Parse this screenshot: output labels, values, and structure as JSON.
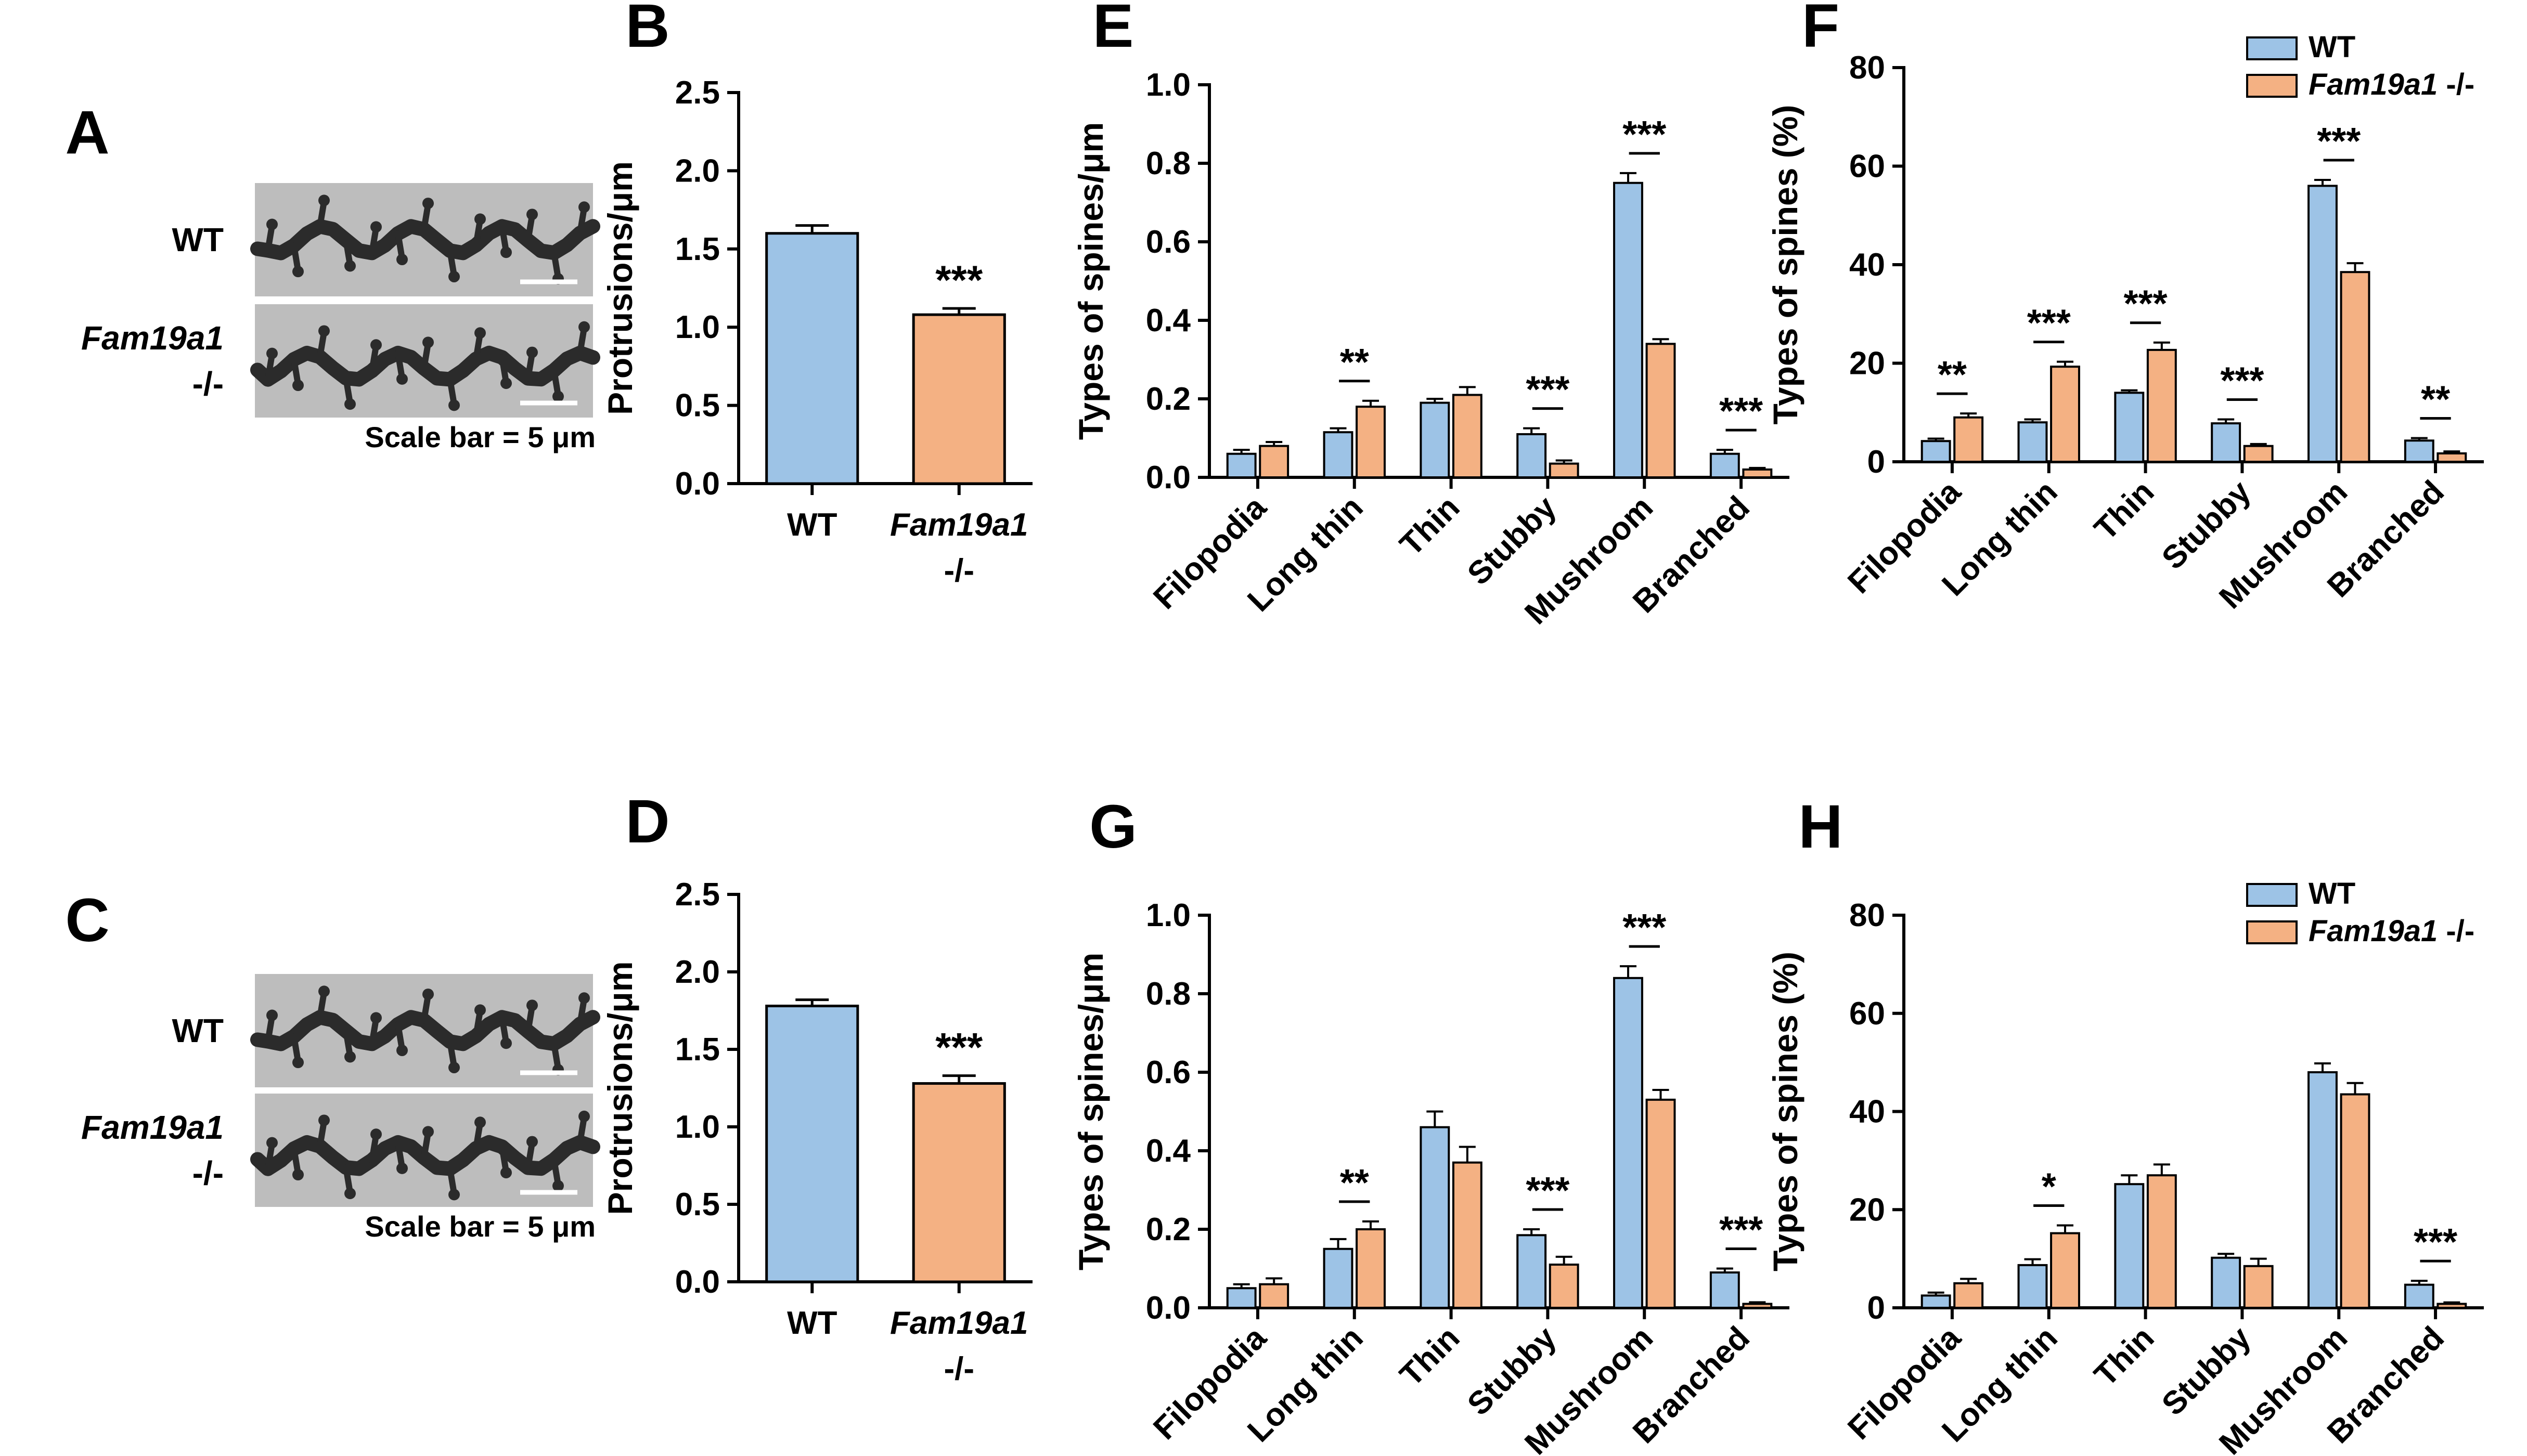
{
  "colors": {
    "wt": "#9DC3E6",
    "ko": "#F4B183",
    "axis": "#000000",
    "micrograph_bg": "#bdbdbd",
    "dendrite": "#2b2b2b"
  },
  "legend": {
    "wt": "WT",
    "ko": "Fam19a1 -/-"
  },
  "micrograph_panels": [
    {
      "label": "A",
      "row_labels": [
        [
          "WT"
        ],
        [
          "Fam19a1",
          "-/-"
        ]
      ],
      "scale_bar_text": "Scale bar = 5 μm"
    },
    {
      "label": "C",
      "row_labels": [
        [
          "WT"
        ],
        [
          "Fam19a1",
          "-/-"
        ]
      ],
      "scale_bar_text": "Scale bar = 5 μm"
    }
  ],
  "chart_data": [
    {
      "panel": "B",
      "type": "bar",
      "ylabel": "Protrusions/μm",
      "ylim": [
        0,
        2.5
      ],
      "yticks": [
        "0.0",
        "0.5",
        "1.0",
        "1.5",
        "2.0",
        "2.5"
      ],
      "categories": [
        [
          "WT"
        ],
        [
          "Fam19a1",
          "-/-"
        ]
      ],
      "values": [
        1.6,
        1.08
      ],
      "errors": [
        0.05,
        0.04
      ],
      "significance": "***"
    },
    {
      "panel": "D",
      "type": "bar",
      "ylabel": "Protrusions/μm",
      "ylim": [
        0,
        2.5
      ],
      "yticks": [
        "0.0",
        "0.5",
        "1.0",
        "1.5",
        "2.0",
        "2.5"
      ],
      "categories": [
        [
          "WT"
        ],
        [
          "Fam19a1",
          "-/-"
        ]
      ],
      "values": [
        1.78,
        1.28
      ],
      "errors": [
        0.04,
        0.05
      ],
      "significance": "***"
    },
    {
      "panel": "E",
      "type": "bar",
      "ylabel": "Types of spines/μm",
      "ylim": [
        0,
        1.0
      ],
      "yticks": [
        "0.0",
        "0.2",
        "0.4",
        "0.6",
        "0.8",
        "1.0"
      ],
      "categories": [
        "Filopodia",
        "Long thin",
        "Thin",
        "Stubby",
        "Mushroom",
        "Branched"
      ],
      "series": [
        {
          "name": "WT",
          "values": [
            0.06,
            0.115,
            0.19,
            0.11,
            0.75,
            0.06
          ],
          "errors": [
            0.01,
            0.01,
            0.01,
            0.015,
            0.025,
            0.01
          ]
        },
        {
          "name": "Fam19a1 -/-",
          "values": [
            0.08,
            0.18,
            0.21,
            0.035,
            0.34,
            0.02
          ],
          "errors": [
            0.01,
            0.015,
            0.02,
            0.008,
            0.012,
            0.004
          ]
        }
      ],
      "significance": [
        "",
        "**",
        "",
        "***",
        "***",
        "***"
      ]
    },
    {
      "panel": "F",
      "type": "bar",
      "ylabel": "Types of spines (%)",
      "ylim": [
        0,
        80
      ],
      "yticks": [
        "0",
        "20",
        "40",
        "60",
        "80"
      ],
      "categories": [
        "Filopodia",
        "Long thin",
        "Thin",
        "Stubby",
        "Mushroom",
        "Branched"
      ],
      "series": [
        {
          "name": "WT",
          "values": [
            4.2,
            8.0,
            14.0,
            7.8,
            56.0,
            4.3
          ],
          "errors": [
            0.5,
            0.6,
            0.5,
            0.8,
            1.2,
            0.5
          ]
        },
        {
          "name": "Fam19a1 -/-",
          "values": [
            9.0,
            19.3,
            22.7,
            3.2,
            38.5,
            1.7
          ],
          "errors": [
            0.8,
            1.0,
            1.5,
            0.4,
            1.8,
            0.4
          ]
        }
      ],
      "significance": [
        "**",
        "***",
        "***",
        "***",
        "***",
        "**"
      ],
      "legend": true
    },
    {
      "panel": "G",
      "type": "bar",
      "ylabel": "Types of spines/μm",
      "ylim": [
        0,
        1.0
      ],
      "yticks": [
        "0.0",
        "0.2",
        "0.4",
        "0.6",
        "0.8",
        "1.0"
      ],
      "categories": [
        "Filopodia",
        "Long thin",
        "Thin",
        "Stubby",
        "Mushroom",
        "Branched"
      ],
      "series": [
        {
          "name": "WT",
          "values": [
            0.05,
            0.15,
            0.46,
            0.185,
            0.84,
            0.09
          ],
          "errors": [
            0.01,
            0.025,
            0.04,
            0.015,
            0.03,
            0.01
          ]
        },
        {
          "name": "Fam19a1 -/-",
          "values": [
            0.06,
            0.2,
            0.37,
            0.11,
            0.53,
            0.01
          ],
          "errors": [
            0.015,
            0.02,
            0.04,
            0.02,
            0.025,
            0.004
          ]
        }
      ],
      "significance": [
        "",
        "**",
        "",
        "***",
        "***",
        "***"
      ]
    },
    {
      "panel": "H",
      "type": "bar",
      "ylabel": "Types of spines (%)",
      "ylim": [
        0,
        80
      ],
      "yticks": [
        "0",
        "20",
        "40",
        "60",
        "80"
      ],
      "categories": [
        "Filopodia",
        "Long thin",
        "Thin",
        "Stubby",
        "Mushroom",
        "Branched"
      ],
      "series": [
        {
          "name": "WT",
          "values": [
            2.5,
            8.7,
            25.2,
            10.2,
            48.0,
            4.7
          ],
          "errors": [
            0.6,
            1.2,
            1.8,
            0.8,
            1.8,
            0.8
          ]
        },
        {
          "name": "Fam19a1 -/-",
          "values": [
            5.0,
            15.2,
            27.0,
            8.5,
            43.5,
            0.8
          ],
          "errors": [
            0.9,
            1.6,
            2.2,
            1.5,
            2.3,
            0.3
          ]
        }
      ],
      "significance": [
        "",
        "*",
        "",
        "",
        "",
        "***"
      ],
      "legend": true
    }
  ]
}
